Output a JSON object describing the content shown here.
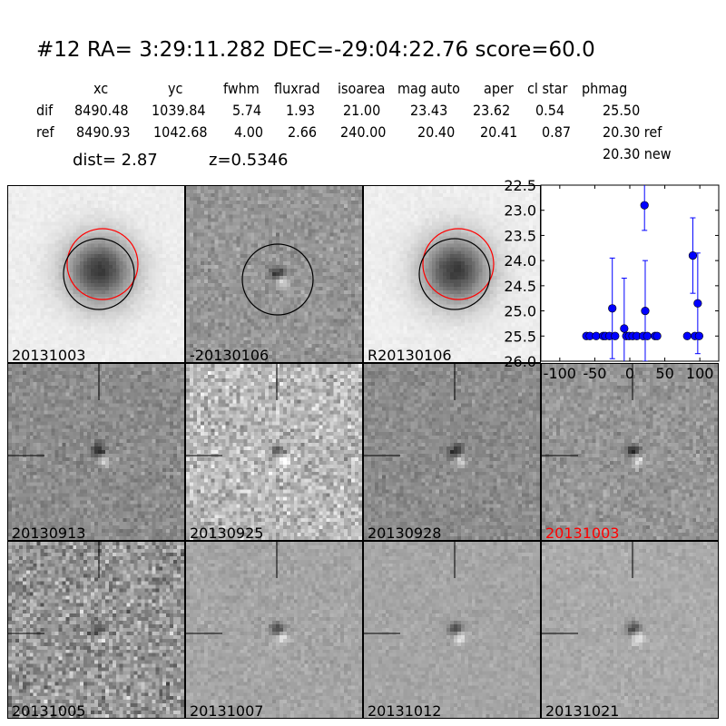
{
  "header": {
    "title": "#12   RA= 3:29:11.282 DEC=-29:04:22.76      score=60.0"
  },
  "table": {
    "columns": [
      "xc",
      "yc",
      "fwhm",
      "fluxrad",
      "isoarea",
      "mag auto",
      "aper",
      "cl star",
      "phmag"
    ],
    "rows": [
      {
        "label": "dif",
        "values": [
          "8490.48",
          "1039.84",
          "5.74",
          "1.93",
          "21.00",
          "23.43",
          "23.62",
          "0.54",
          "25.50"
        ]
      },
      {
        "label": "ref",
        "values": [
          "8490.93",
          "1042.68",
          "4.00",
          "2.66",
          "240.00",
          "20.40",
          "20.41",
          "0.87",
          "20.30 ref"
        ]
      }
    ],
    "extra_phmag": "20.30 new",
    "dist": "dist=  2.87",
    "z": "z=0.5346"
  },
  "stamps": [
    {
      "label": "20131003",
      "kind": "new",
      "circles": true
    },
    {
      "label": "-20130106",
      "kind": "diff",
      "circles": "black-only"
    },
    {
      "label": "R20130106",
      "kind": "ref",
      "circles": true
    },
    {
      "label": "20130913",
      "kind": "diff",
      "crosshair": true
    },
    {
      "label": "20130925",
      "kind": "diff",
      "crosshair": true
    },
    {
      "label": "20130928",
      "kind": "diff",
      "crosshair": true
    },
    {
      "label": "20131003",
      "kind": "diff",
      "crosshair": true,
      "highlight": true
    },
    {
      "label": "20131005",
      "kind": "diff",
      "crosshair": true
    },
    {
      "label": "20131007",
      "kind": "diff",
      "crosshair": true
    },
    {
      "label": "20131012",
      "kind": "diff",
      "crosshair": true
    },
    {
      "label": "20131021",
      "kind": "diff",
      "crosshair": true
    }
  ],
  "colors": {
    "highlight_label": "#ff0000",
    "marker": "#0000ff",
    "circle_new": "#ff0000",
    "circle_ref": "#000000"
  },
  "chart_data": {
    "type": "scatter",
    "title": "",
    "xlabel": "",
    "ylabel": "",
    "xlim": [
      -127,
      127
    ],
    "ylim": [
      26.0,
      22.5
    ],
    "y_inverted": true,
    "xticks": [
      "-100",
      "-50",
      "0",
      "50",
      "100"
    ],
    "xtick_values": [
      -100,
      -50,
      0,
      50,
      100
    ],
    "yticks": [
      "22.5",
      "23.0",
      "23.5",
      "24.0",
      "24.5",
      "25.0",
      "25.5",
      "26.0"
    ],
    "ytick_values": [
      22.5,
      23.0,
      23.5,
      24.0,
      24.5,
      25.0,
      25.5,
      26.0
    ],
    "series": [
      {
        "x": [
          -62,
          -57,
          -48,
          -38,
          -35,
          -29,
          -25,
          -21,
          -8,
          -5,
          -1,
          4,
          10,
          21,
          22,
          19,
          25,
          36,
          39,
          82,
          90,
          93,
          97,
          99
        ],
        "y": [
          25.5,
          25.5,
          25.5,
          25.5,
          25.5,
          25.5,
          24.95,
          25.5,
          25.35,
          25.5,
          25.5,
          25.5,
          25.5,
          22.9,
          25.0,
          25.5,
          25.5,
          25.5,
          25.5,
          25.5,
          23.9,
          25.5,
          24.85,
          25.5
        ],
        "err": [
          0.05,
          0.05,
          0.05,
          0.05,
          0.05,
          0.05,
          1.0,
          0.05,
          1.0,
          0.05,
          0.05,
          0.05,
          0.05,
          0.5,
          1.0,
          0.05,
          0.05,
          0.05,
          0.05,
          0.05,
          0.75,
          0.05,
          1.0,
          0.05
        ]
      }
    ]
  }
}
